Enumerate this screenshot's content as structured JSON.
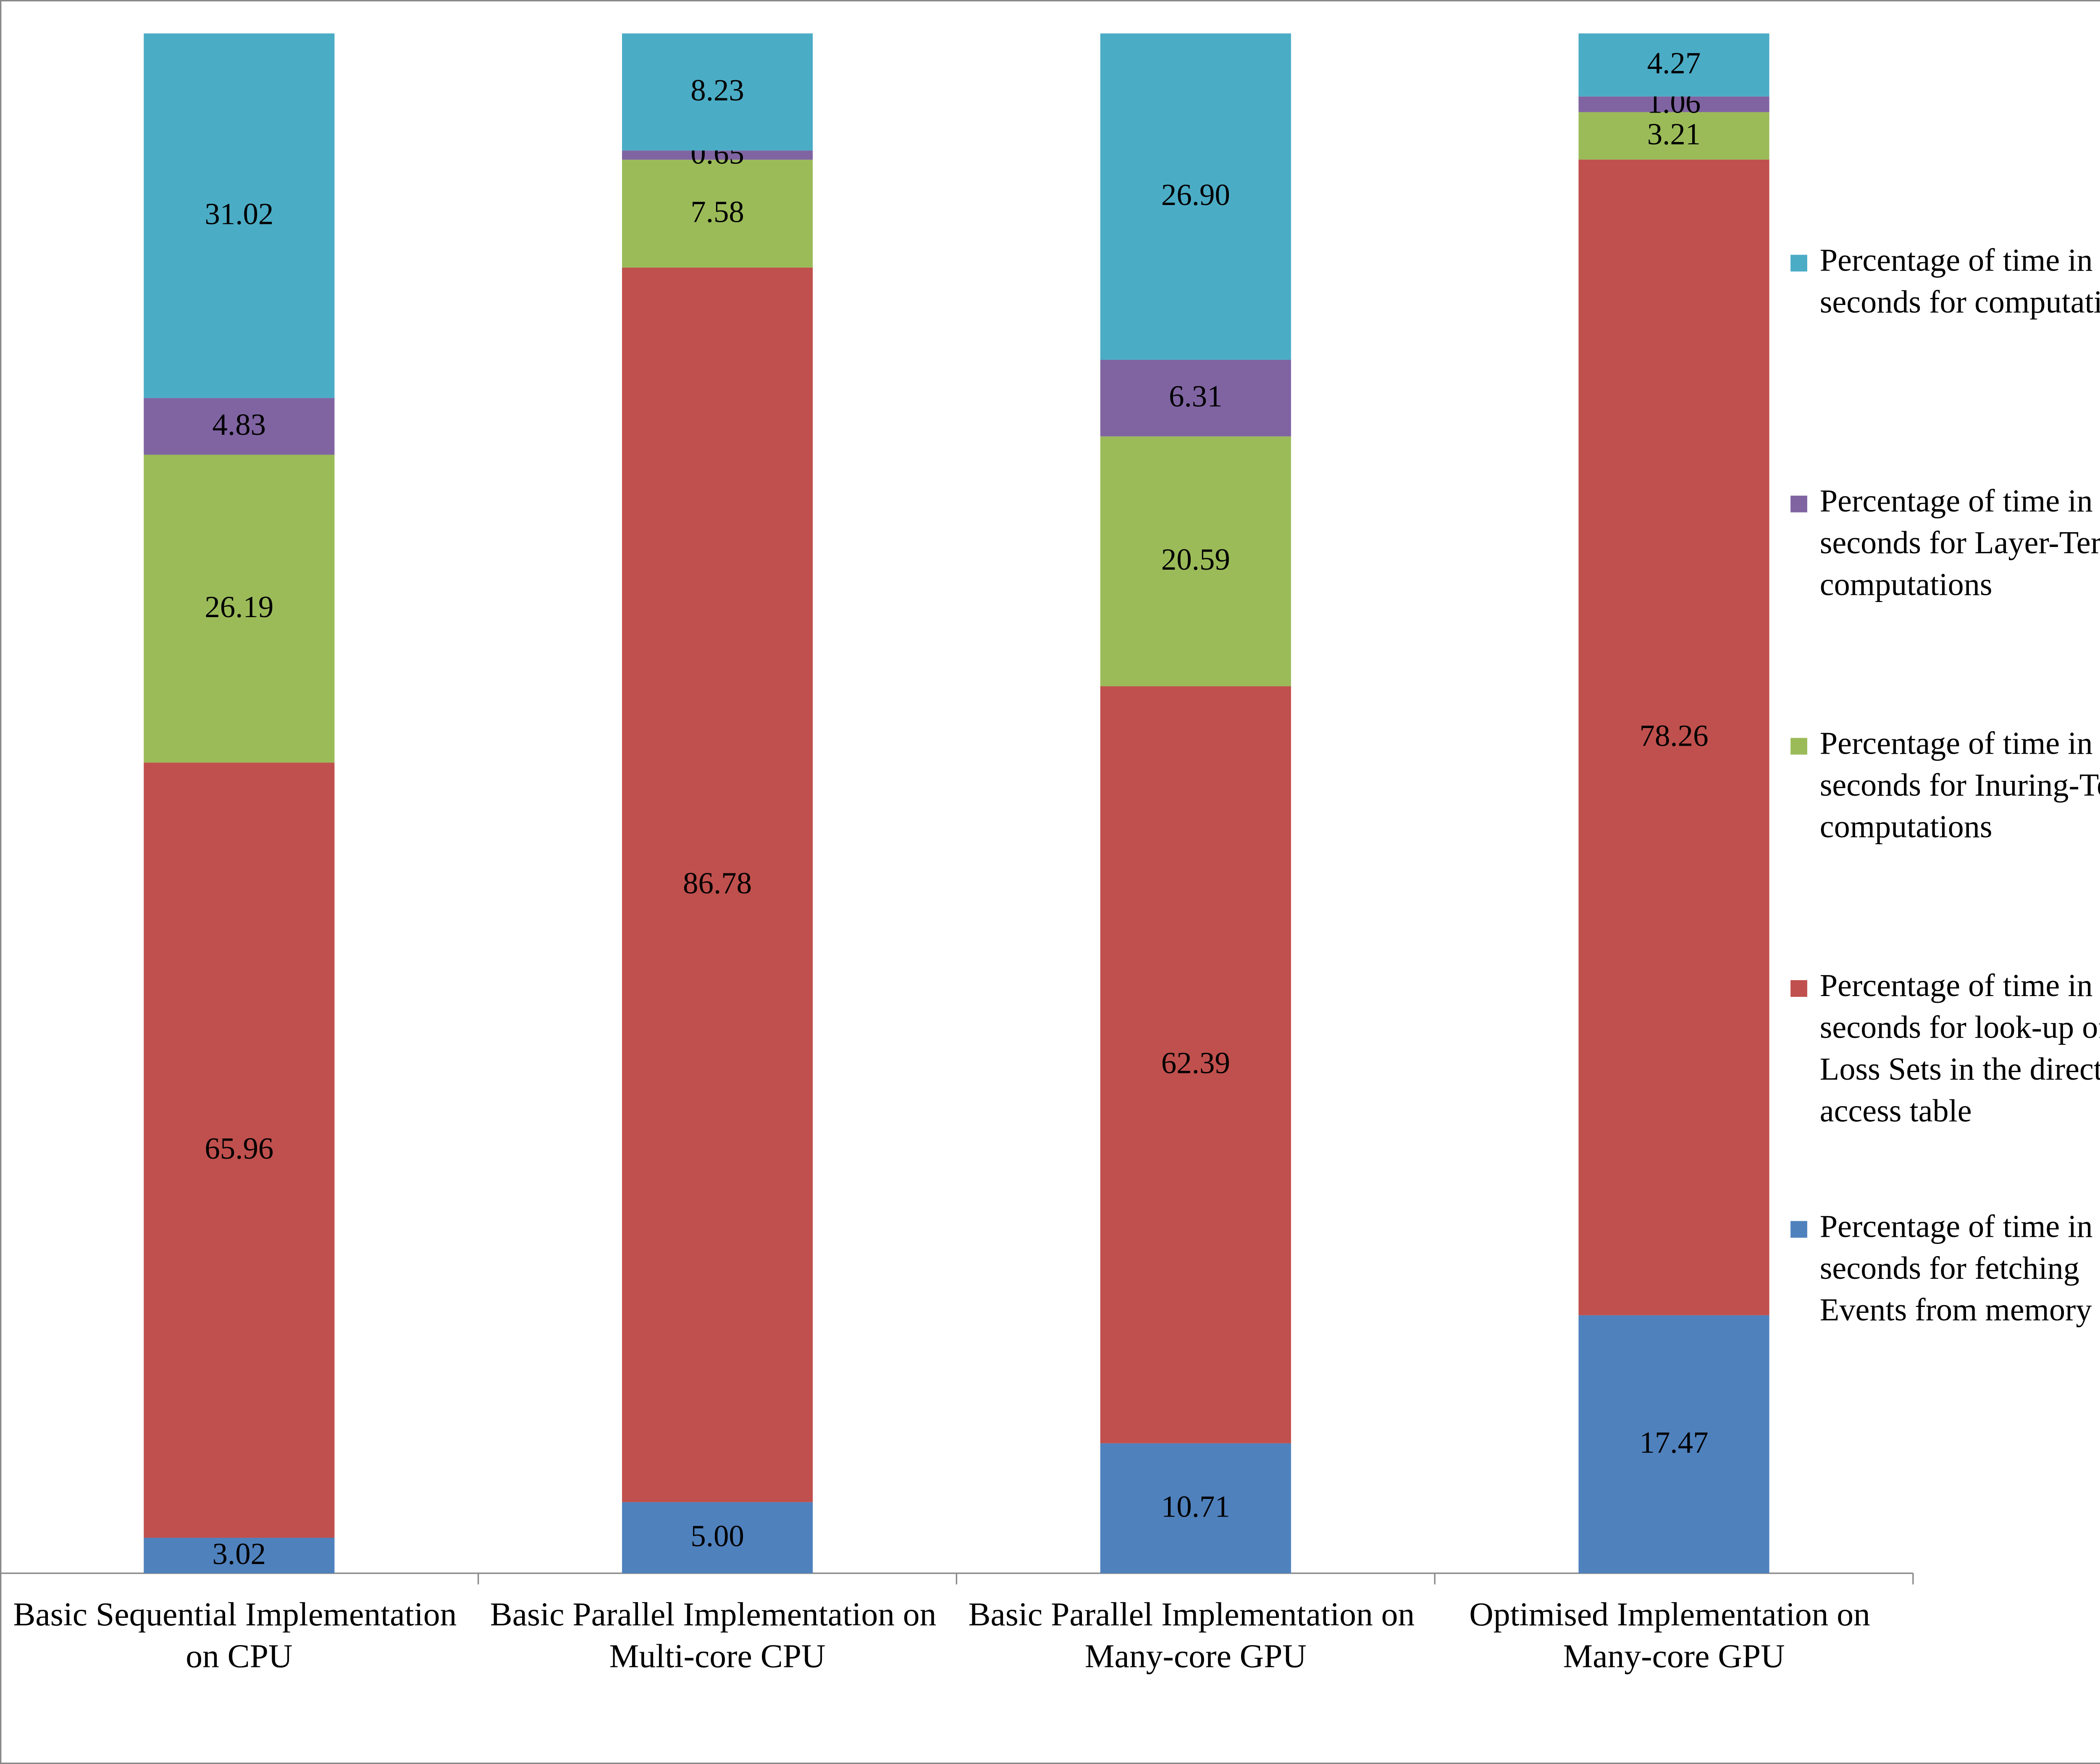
{
  "chart_data": {
    "type": "bar",
    "stacked": "percent",
    "categories": [
      "Basic Sequential Implementation on CPU",
      "Basic Parallel Implementation on Multi-core CPU",
      "Basic Parallel Implementation on Many-core GPU",
      "Optimised Implementation on Many-core GPU"
    ],
    "series": [
      {
        "name": "Percentage of time in seconds for fetching Events from memory",
        "color": "#4f81bd",
        "values": [
          3.02,
          5,
          10.71,
          17.47
        ],
        "value_labels": [
          "3.02",
          "5.00",
          "10.71",
          "17.47"
        ]
      },
      {
        "name": "Percentage of time in seconds for look-up of Loss Sets in the direct access table",
        "color": "#c0504d",
        "values": [
          65.96,
          86.78,
          62.39,
          78.26
        ],
        "value_labels": [
          "65.96",
          "86.78",
          "62.39",
          "78.26"
        ]
      },
      {
        "name": "Percentage of time in seconds for Inuring-Term computations",
        "color": "#9bbb59",
        "values": [
          26.19,
          7.58,
          20.59,
          3.21
        ],
        "value_labels": [
          "26.19",
          "7.58",
          "20.59",
          "3.21"
        ]
      },
      {
        "name": "Percentage of time in seconds for Layer-Term computations",
        "color": "#8064a2",
        "values": [
          4.83,
          0.65,
          6.31,
          1.06
        ],
        "value_labels": [
          "4.83",
          "0.65",
          "6.31",
          "1.06"
        ]
      },
      {
        "name": "Percentage of time in seconds for computations",
        "color": "#4bacc6",
        "values": [
          31.02,
          8.23,
          26.9,
          4.27
        ],
        "value_labels": [
          "31.02",
          "8.23",
          "26.90",
          "4.27"
        ]
      }
    ],
    "legend": "right"
  }
}
